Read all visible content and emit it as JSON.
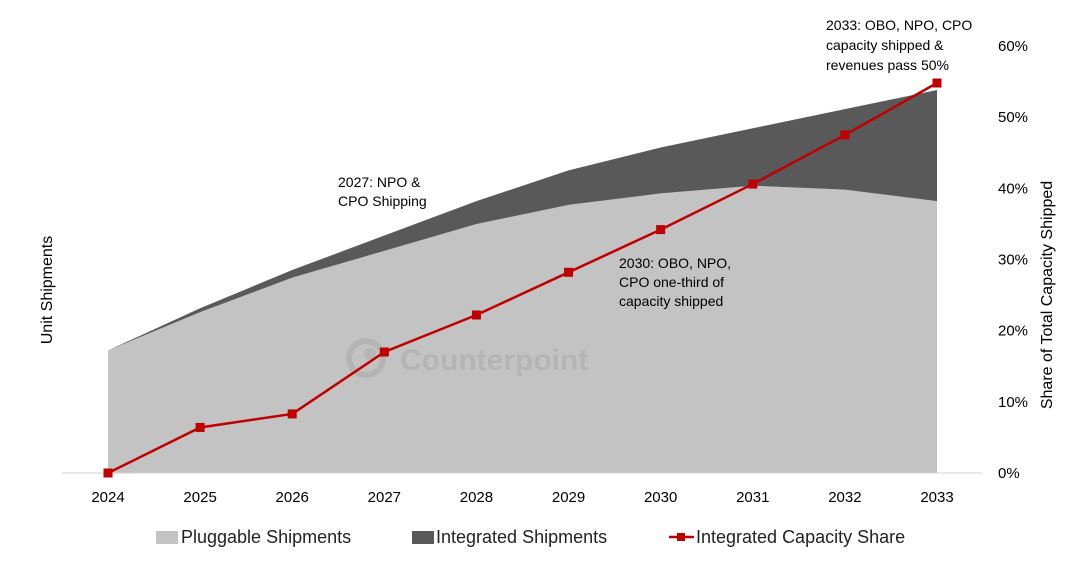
{
  "chart_data": {
    "type": "area",
    "x": [
      "2024",
      "2025",
      "2026",
      "2027",
      "2028",
      "2029",
      "2030",
      "2031",
      "2032",
      "2033"
    ],
    "ylabel": "Unit Shipments",
    "y2label": "Share of Total Capacity Shipped",
    "y_relative_max": 1.0,
    "series": [
      {
        "name": "Pluggable Shipments",
        "kind": "stacked-area",
        "axis": "left",
        "color": "#c3c3c3",
        "values": [
          0.32,
          0.42,
          0.51,
          0.58,
          0.65,
          0.7,
          0.73,
          0.75,
          0.74,
          0.71
        ]
      },
      {
        "name": "Integrated Shipments",
        "kind": "stacked-area",
        "axis": "left",
        "color": "#595959",
        "values": [
          0.0,
          0.01,
          0.02,
          0.04,
          0.06,
          0.09,
          0.12,
          0.15,
          0.21,
          0.29
        ]
      },
      {
        "name": "Integrated Capacity Share",
        "kind": "line-markers",
        "axis": "right",
        "color": "#c00000",
        "unit": "%",
        "values": [
          0,
          6.4,
          8.3,
          17,
          22.2,
          28.2,
          34.2,
          40.6,
          47.5,
          54.8
        ]
      }
    ],
    "y2_ticks": [
      "0%",
      "10%",
      "20%",
      "30%",
      "40%",
      "50%",
      "60%"
    ],
    "y2lim": [
      0,
      60
    ],
    "legend_position": "bottom",
    "annotations": [
      {
        "id": "a2027",
        "lines": [
          "2027:  NPO &",
          "CPO Shipping"
        ]
      },
      {
        "id": "a2030",
        "lines": [
          "2030:  OBO, NPO,",
          "CPO one-third of",
          "capacity shipped"
        ]
      },
      {
        "id": "a2033",
        "lines": [
          "2033:  OBO, NPO, CPO",
          "capacity shipped &",
          "revenues pass 50%"
        ]
      }
    ],
    "watermark": "Counterpoint"
  }
}
